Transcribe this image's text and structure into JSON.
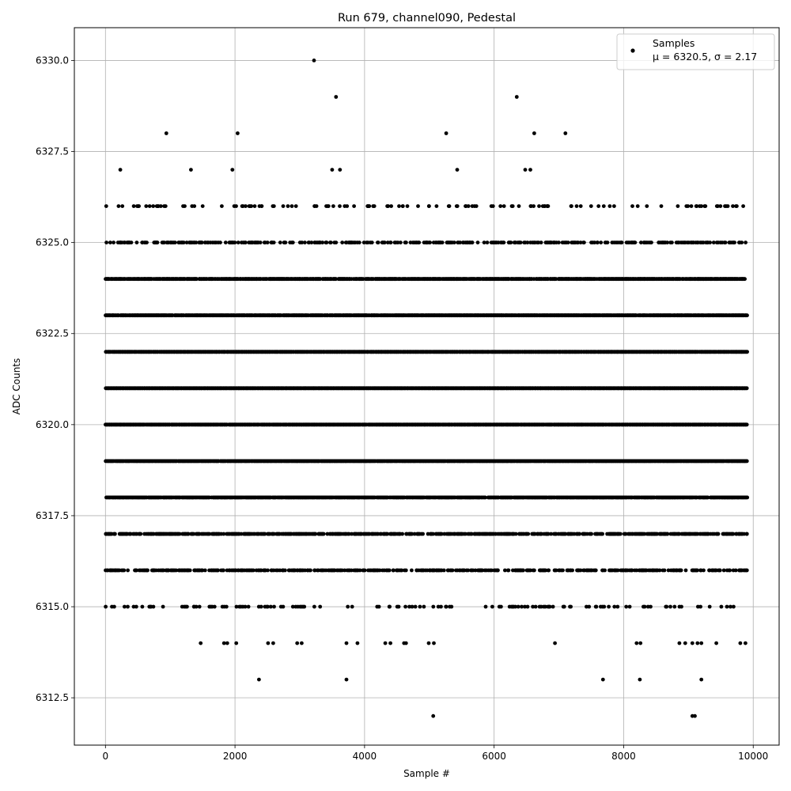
{
  "chart_data": {
    "type": "scatter",
    "title": "Run 679, channel090, Pedestal",
    "xlabel": "Sample #",
    "ylabel": "ADC Counts",
    "xlim": [
      -480,
      10400
    ],
    "ylim": [
      6311.2,
      6330.9
    ],
    "xticks": [
      0,
      2000,
      4000,
      6000,
      8000,
      10000
    ],
    "xtick_labels": [
      "0",
      "2000",
      "4000",
      "6000",
      "8000",
      "10000"
    ],
    "yticks": [
      6312.5,
      6315.0,
      6317.5,
      6320.0,
      6322.5,
      6325.0,
      6327.5,
      6330.0
    ],
    "ytick_labels": [
      "6312.5",
      "6315.0",
      "6317.5",
      "6320.0",
      "6322.5",
      "6325.0",
      "6327.5",
      "6330.0"
    ],
    "grid": true,
    "legend": {
      "location": "upper-right",
      "entries": [
        "Samples",
        "μ = 6320.5, σ = 2.17"
      ]
    },
    "series": [
      {
        "name": "Samples",
        "color": "#000000",
        "marker": "circle",
        "n_samples": 9900,
        "mean": 6320.5,
        "sigma": 2.17,
        "levels": [
          {
            "y": 6318,
            "density": 0.85
          },
          {
            "y": 6319,
            "density": 0.95
          },
          {
            "y": 6320,
            "density": 0.95
          },
          {
            "y": 6321,
            "density": 1.0
          },
          {
            "y": 6322,
            "density": 0.95
          },
          {
            "y": 6323,
            "density": 0.9
          },
          {
            "y": 6324,
            "density": 0.75
          },
          {
            "y": 6317,
            "density": 0.55
          },
          {
            "y": 6316,
            "density": 0.4
          },
          {
            "y": 6325,
            "density": 0.3
          },
          {
            "y": 6315,
            "density": 0.12
          },
          {
            "y": 6326,
            "density": 0.1
          }
        ],
        "outliers": [
          {
            "x": 3220,
            "y": 6330
          },
          {
            "x": 3560,
            "y": 6329
          },
          {
            "x": 6350,
            "y": 6329
          },
          {
            "x": 940,
            "y": 6328
          },
          {
            "x": 2040,
            "y": 6328
          },
          {
            "x": 5260,
            "y": 6328
          },
          {
            "x": 6620,
            "y": 6328
          },
          {
            "x": 7100,
            "y": 6328
          },
          {
            "x": 230,
            "y": 6327
          },
          {
            "x": 1320,
            "y": 6327
          },
          {
            "x": 1960,
            "y": 6327
          },
          {
            "x": 3500,
            "y": 6327
          },
          {
            "x": 3620,
            "y": 6327
          },
          {
            "x": 5430,
            "y": 6327
          },
          {
            "x": 6480,
            "y": 6327
          },
          {
            "x": 6560,
            "y": 6327
          },
          {
            "x": 1470,
            "y": 6314
          },
          {
            "x": 1830,
            "y": 6314
          },
          {
            "x": 1880,
            "y": 6314
          },
          {
            "x": 2020,
            "y": 6314
          },
          {
            "x": 2510,
            "y": 6314
          },
          {
            "x": 2590,
            "y": 6314
          },
          {
            "x": 2960,
            "y": 6314
          },
          {
            "x": 3030,
            "y": 6314
          },
          {
            "x": 3720,
            "y": 6314
          },
          {
            "x": 3890,
            "y": 6314
          },
          {
            "x": 4320,
            "y": 6314
          },
          {
            "x": 4400,
            "y": 6314
          },
          {
            "x": 4610,
            "y": 6314
          },
          {
            "x": 4640,
            "y": 6314
          },
          {
            "x": 4990,
            "y": 6314
          },
          {
            "x": 5070,
            "y": 6314
          },
          {
            "x": 6940,
            "y": 6314
          },
          {
            "x": 8200,
            "y": 6314
          },
          {
            "x": 8260,
            "y": 6314
          },
          {
            "x": 8860,
            "y": 6314
          },
          {
            "x": 8950,
            "y": 6314
          },
          {
            "x": 9060,
            "y": 6314
          },
          {
            "x": 9140,
            "y": 6314
          },
          {
            "x": 9200,
            "y": 6314
          },
          {
            "x": 9430,
            "y": 6314
          },
          {
            "x": 9800,
            "y": 6314
          },
          {
            "x": 9880,
            "y": 6314
          },
          {
            "x": 2370,
            "y": 6313
          },
          {
            "x": 3720,
            "y": 6313
          },
          {
            "x": 7680,
            "y": 6313
          },
          {
            "x": 8250,
            "y": 6313
          },
          {
            "x": 9200,
            "y": 6313
          },
          {
            "x": 5060,
            "y": 6312
          },
          {
            "x": 9060,
            "y": 6312
          },
          {
            "x": 9100,
            "y": 6312
          }
        ]
      }
    ]
  }
}
